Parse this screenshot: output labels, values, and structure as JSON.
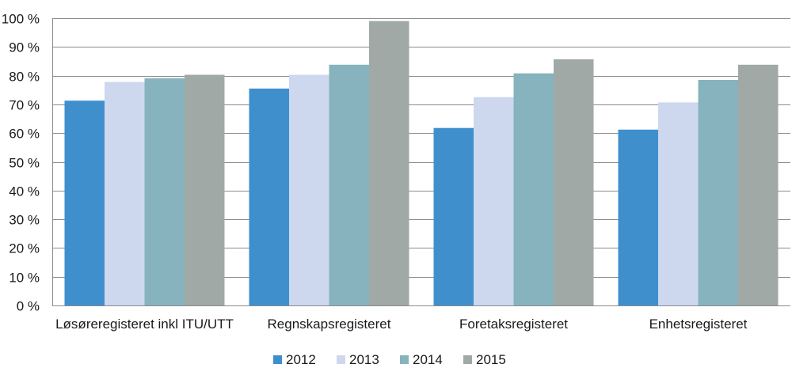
{
  "chart_data": {
    "type": "bar",
    "title": "",
    "xlabel": "",
    "ylabel": "",
    "ylim": [
      0,
      100
    ],
    "yticks": [
      0,
      10,
      20,
      30,
      40,
      50,
      60,
      70,
      80,
      90,
      100
    ],
    "ytick_labels": [
      "0 %",
      "10 %",
      "20 %",
      "30 %",
      "40 %",
      "50 %",
      "60 %",
      "70 %",
      "80 %",
      "90 %",
      "100 %"
    ],
    "grid": true,
    "legend_position": "bottom",
    "categories": [
      "Løsøreregisteret inkl ITU/UTT",
      "Regnskapsregisteret",
      "Foretaksregisteret",
      "Enhetsregisteret"
    ],
    "series": [
      {
        "name": "2012",
        "color": "#3f8fcd",
        "values": [
          71.3,
          75.5,
          61.8,
          61.2
        ]
      },
      {
        "name": "2013",
        "color": "#cdd8ef",
        "values": [
          77.8,
          80.3,
          72.5,
          70.7
        ]
      },
      {
        "name": "2014",
        "color": "#86b3bd",
        "values": [
          79.1,
          83.8,
          80.8,
          78.5
        ]
      },
      {
        "name": "2015",
        "color": "#a0a9a6",
        "values": [
          80.3,
          99.0,
          85.7,
          83.8
        ]
      }
    ]
  }
}
